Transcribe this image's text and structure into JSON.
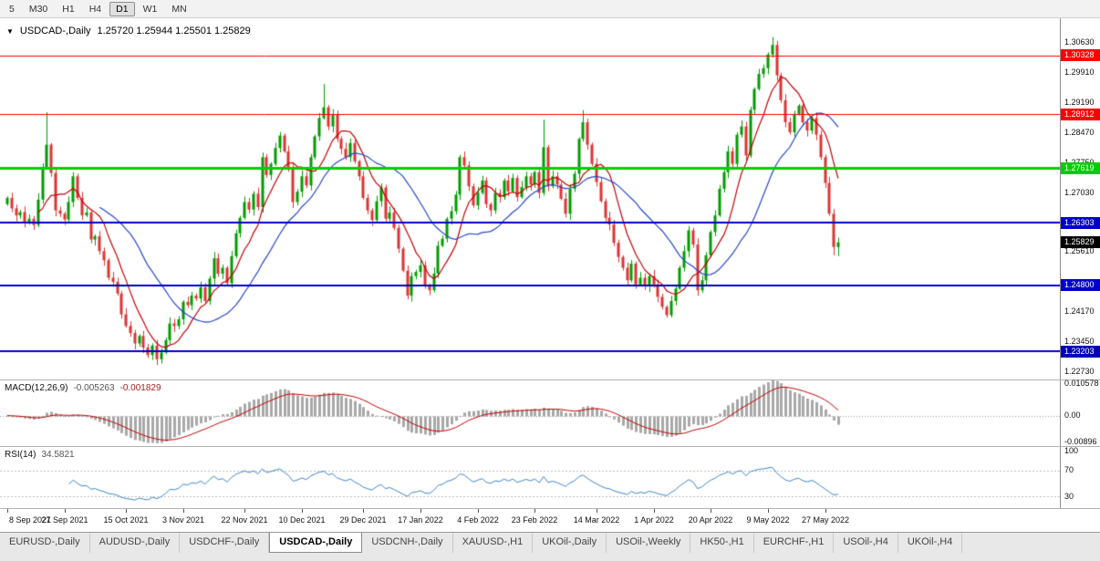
{
  "toolbar": {
    "timeframes": [
      "5",
      "M30",
      "H1",
      "H4",
      "D1",
      "W1",
      "MN"
    ],
    "active": "D1"
  },
  "chart": {
    "title_symbol": "USDCAD-,Daily",
    "title_ohlc": "1.25720 1.25944 1.25501 1.25829"
  },
  "chart_data": {
    "type": "candlestick",
    "symbol": "USDCAD",
    "timeframe": "Daily",
    "last_ohlc": {
      "open": 1.2572,
      "high": 1.25944,
      "low": 1.25501,
      "close": 1.25829
    },
    "ylim": [
      1.22533,
      1.31222
    ],
    "up_color": "#009c00",
    "down_color": "#dd3434",
    "closes": [
      1.269,
      1.2665,
      1.2648,
      1.2656,
      1.2632,
      1.264,
      1.2625,
      1.2686,
      1.2762,
      1.2818,
      1.275,
      1.266,
      1.2652,
      1.2638,
      1.268,
      1.2742,
      1.269,
      1.2648,
      1.2655,
      1.259,
      1.2598,
      1.2562,
      1.254,
      1.2498,
      1.2488,
      1.246,
      1.241,
      1.2382,
      1.2365,
      1.234,
      1.2358,
      1.233,
      1.2312,
      1.2335,
      1.2302,
      1.2318,
      1.2348,
      1.2388,
      1.2382,
      1.2398,
      1.244,
      1.2432,
      1.2455,
      1.2448,
      1.2475,
      1.2442,
      1.2496,
      1.2545,
      1.2508,
      1.2522,
      1.2485,
      1.255,
      1.2605,
      1.2642,
      1.268,
      1.2662,
      1.27,
      1.2668,
      1.2788,
      1.2745,
      1.2772,
      1.281,
      1.284,
      1.2802,
      1.2762,
      1.268,
      1.2705,
      1.2742,
      1.272,
      1.2788,
      1.2838,
      1.2882,
      1.2908,
      1.2862,
      1.289,
      1.2832,
      1.2808,
      1.2788,
      1.2822,
      1.2778,
      1.2742,
      1.269,
      1.266,
      1.2637,
      1.2682,
      1.2715,
      1.264,
      1.2655,
      1.2618,
      1.2568,
      1.2515,
      1.2455,
      1.2502,
      1.2512,
      1.2528,
      1.2478,
      1.2468,
      1.2508,
      1.2575,
      1.2592,
      1.264,
      1.2658,
      1.2698,
      1.2788,
      1.2768,
      1.2718,
      1.2672,
      1.2702,
      1.2732,
      1.2675,
      1.266,
      1.2702,
      1.2692,
      1.2732,
      1.2706,
      1.2738,
      1.2692,
      1.2716,
      1.2742,
      1.2722,
      1.2752,
      1.2702,
      1.2812,
      1.2718,
      1.2742,
      1.2722,
      1.2688,
      1.2652,
      1.2712,
      1.2748,
      1.2832,
      1.2872,
      1.2818,
      1.2772,
      1.2728,
      1.2682,
      1.2642,
      1.2626,
      1.2582,
      1.2548,
      1.2522,
      1.2492,
      1.2532,
      1.2482,
      1.2498,
      1.2478,
      1.2502,
      1.2482,
      1.2452,
      1.2428,
      1.2408,
      1.2442,
      1.2472,
      1.2522,
      1.2562,
      1.2612,
      1.2578,
      1.2468,
      1.2492,
      1.2552,
      1.2608,
      1.2648,
      1.2712,
      1.2752,
      1.2802,
      1.2772,
      1.2842,
      1.2862,
      1.2792,
      1.2902,
      1.2952,
      1.2988,
      1.3002,
      1.3035,
      1.3058,
      1.2985,
      1.2925,
      1.2872,
      1.2848,
      1.2892,
      1.2912,
      1.2872,
      1.2852,
      1.2882,
      1.2842,
      1.2788,
      1.2726,
      1.2652,
      1.2572,
      1.25829
    ],
    "wick_overrides": {
      "9": {
        "h": 1.2896
      },
      "34": {
        "l": 1.2288
      },
      "72": {
        "h": 1.2964
      },
      "122": {
        "h": 1.2878
      },
      "131": {
        "h": 1.2901
      },
      "150": {
        "l": 1.2402
      },
      "174": {
        "h": 1.3077
      },
      "188": {
        "l": 1.2552
      }
    },
    "moving_averages": [
      {
        "period": 8,
        "color": "#c40000"
      },
      {
        "period": 22,
        "color": "#2747c8"
      }
    ],
    "hlines": [
      {
        "price": 1.30328,
        "color": "#ff0000",
        "width": 1
      },
      {
        "price": 1.28912,
        "color": "#ff0000",
        "width": 1
      },
      {
        "price": 1.27619,
        "color": "#00ce00",
        "width": 3
      },
      {
        "price": 1.26303,
        "color": "#0000cc",
        "width": 2
      },
      {
        "price": 1.248,
        "color": "#0000cc",
        "width": 2
      },
      {
        "price": 1.23203,
        "color": "#0000bb",
        "width": 2
      }
    ],
    "price_ticks": [
      {
        "text": "1.30630",
        "value": 1.3063
      },
      {
        "text": "1.29910",
        "value": 1.2991
      },
      {
        "text": "1.29190",
        "value": 1.2919
      },
      {
        "text": "1.28470",
        "value": 1.2847
      },
      {
        "text": "1.27750",
        "value": 1.2775
      },
      {
        "text": "1.27030",
        "value": 1.2703
      },
      {
        "text": "1.25610",
        "value": 1.2561
      },
      {
        "text": "1.24170",
        "value": 1.2417
      },
      {
        "text": "1.23450",
        "value": 1.2345
      },
      {
        "text": "1.22730",
        "value": 1.2273
      }
    ],
    "price_badges": [
      {
        "text": "1.30328",
        "price": 1.30328,
        "bg": "#ff0000"
      },
      {
        "text": "1.28912",
        "price": 1.28912,
        "bg": "#ff0000"
      },
      {
        "text": "1.27619",
        "price": 1.27619,
        "bg": "#00ce00"
      },
      {
        "text": "1.26303",
        "price": 1.26303,
        "bg": "#0000cc"
      },
      {
        "text": "1.24800",
        "price": 1.248,
        "bg": "#0000cc"
      },
      {
        "text": "1.23203",
        "price": 1.23203,
        "bg": "#0000bb"
      },
      {
        "text": "1.25829",
        "price": 1.25829,
        "bg": "#000000"
      }
    ],
    "x_labels": [
      {
        "i": 0,
        "t": "8 Sep 2021"
      },
      {
        "i": 13,
        "t": "27 Sep 2021"
      },
      {
        "i": 27,
        "t": "15 Oct 2021"
      },
      {
        "i": 40,
        "t": "3 Nov 2021"
      },
      {
        "i": 54,
        "t": "22 Nov 2021"
      },
      {
        "i": 67,
        "t": "10 Dec 2021"
      },
      {
        "i": 81,
        "t": "29 Dec 2021"
      },
      {
        "i": 94,
        "t": "17 Jan 2022"
      },
      {
        "i": 107,
        "t": "4 Feb 2022"
      },
      {
        "i": 120,
        "t": "23 Feb 2022"
      },
      {
        "i": 134,
        "t": "14 Mar 2022"
      },
      {
        "i": 147,
        "t": "1 Apr 2022"
      },
      {
        "i": 160,
        "t": "20 Apr 2022"
      },
      {
        "i": 173,
        "t": "9 May 2022"
      },
      {
        "i": 186,
        "t": "27 May 2022"
      }
    ],
    "macd": {
      "name": "MACD(12,26,9)",
      "main_value": "-0.005263",
      "signal_value": "-0.001829",
      "fast": 12,
      "slow": 26,
      "signal": 9,
      "ylim": [
        -0.0102,
        0.0118
      ],
      "hist_color": "#a8a8a8",
      "signal_color": "#c40000",
      "ticks": [
        {
          "text": "0.010578",
          "value": 0.010578
        },
        {
          "text": "0.00",
          "value": 0
        },
        {
          "text": "-0.00896",
          "value": -0.00896
        }
      ]
    },
    "rsi": {
      "name": "RSI(14)",
      "value": "34.5821",
      "period": 14,
      "ylim": [
        12,
        106
      ],
      "levels": [
        70,
        30
      ],
      "line_color": "#3e84c6",
      "ticks": [
        {
          "text": "100",
          "value": 100
        },
        {
          "text": "70",
          "value": 70
        },
        {
          "text": "30",
          "value": 30
        }
      ]
    }
  },
  "tabs": [
    {
      "label": "EURUSD-,Daily"
    },
    {
      "label": "AUDUSD-,Daily"
    },
    {
      "label": "USDCHF-,Daily"
    },
    {
      "label": "USDCAD-,Daily",
      "active": true
    },
    {
      "label": "USDCNH-,Daily"
    },
    {
      "label": "XAUUSD-,H1"
    },
    {
      "label": "UKOil-,Daily"
    },
    {
      "label": "USOil-,Weekly"
    },
    {
      "label": "HK50-,H1"
    },
    {
      "label": "EURCHF-,H1"
    },
    {
      "label": "USOil-,H4"
    },
    {
      "label": "UKOil-,H4"
    }
  ]
}
